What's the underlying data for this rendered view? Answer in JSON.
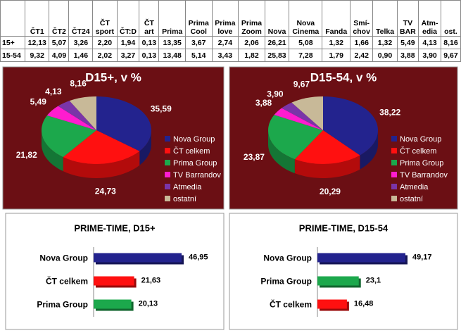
{
  "table": {
    "header": [
      "ČT1",
      "ČT2",
      "ČT24",
      "ČT\nsport",
      "ČT:D",
      "ČT\nart",
      "Prima",
      "Prima\nCool",
      "Prima\nlove",
      "Prima\nZoom",
      "Nova",
      "Nova\nCinema",
      "Fanda",
      "Smí-\nchov",
      "Telka",
      "TV\nBAR",
      "Atm-\nedia",
      "ost."
    ],
    "rows": [
      [
        "15+",
        "12,13",
        "5,07",
        "3,26",
        "2,20",
        "1,94",
        "0,13",
        "13,35",
        "3,67",
        "2,74",
        "2,06",
        "26,21",
        "5,08",
        "1,32",
        "1,66",
        "1,32",
        "5,49",
        "4,13",
        "8,16"
      ],
      [
        "15-54",
        "9,32",
        "4,09",
        "1,46",
        "2,02",
        "3,27",
        "0,13",
        "13,48",
        "5,14",
        "3,43",
        "1,82",
        "25,83",
        "7,28",
        "1,79",
        "2,42",
        "0,90",
        "3,88",
        "3,90",
        "9,67"
      ]
    ]
  },
  "chart_data": [
    {
      "type": "pie",
      "title": "D15+, v %",
      "categories": [
        "Nova Group",
        "ČT celkem",
        "Prima Group",
        "TV Barrandov",
        "Atmedia",
        "ostatní"
      ],
      "values": [
        35.59,
        24.73,
        21.82,
        5.49,
        4.13,
        8.16
      ],
      "value_labels": [
        "35,59",
        "24,73",
        "21,82",
        "5,49",
        "4,13",
        "8,16"
      ],
      "colors": [
        "#23238e",
        "#ff1010",
        "#1ca84c",
        "#ff1ccf",
        "#7a35a8",
        "#c8b998"
      ],
      "legend": "right"
    },
    {
      "type": "pie",
      "title": "D15-54, v %",
      "categories": [
        "Nova Group",
        "ČT celkem",
        "Prima Group",
        "TV Barrandov",
        "Atmedia",
        "ostatní"
      ],
      "values": [
        38.22,
        20.29,
        23.87,
        3.88,
        3.9,
        9.67
      ],
      "value_labels": [
        "38,22",
        "20,29",
        "23,87",
        "3,88",
        "3,90",
        "9,67"
      ],
      "colors": [
        "#23238e",
        "#ff1010",
        "#1ca84c",
        "#ff1ccf",
        "#7a35a8",
        "#c8b998"
      ],
      "legend": "right"
    },
    {
      "type": "bar",
      "title": "PRIME-TIME, D15+",
      "categories": [
        "Nova Group",
        "ČT celkem",
        "Prima Group"
      ],
      "values": [
        46.95,
        21.63,
        20.13
      ],
      "value_labels": [
        "46,95",
        "21,63",
        "20,13"
      ],
      "colors": [
        "#23238e",
        "#ff1010",
        "#1ca84c"
      ]
    },
    {
      "type": "bar",
      "title": "PRIME-TIME, D15-54",
      "categories": [
        "Nova Group",
        "Prima Group",
        "ČT celkem"
      ],
      "values": [
        49.17,
        23.1,
        16.48
      ],
      "value_labels": [
        "49,17",
        "23,1",
        "16,48"
      ],
      "colors": [
        "#23238e",
        "#1ca84c",
        "#ff1010"
      ]
    }
  ]
}
